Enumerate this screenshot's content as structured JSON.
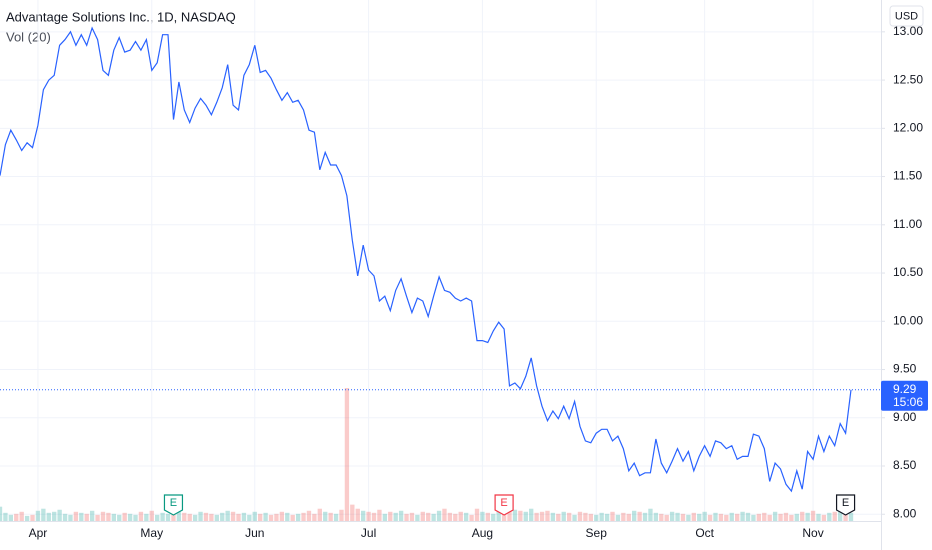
{
  "chart_data": {
    "type": "line",
    "title": "Advantage Solutions Inc., 1D, NASDAQ",
    "volume_label": "Vol (20)",
    "currency": "USD",
    "countdown": "15:06",
    "color": "#2962ff",
    "grid": true,
    "categories": [
      null,
      null,
      null,
      null,
      null,
      null,
      null,
      "Apr",
      null,
      null,
      null,
      null,
      null,
      null,
      null,
      null,
      null,
      null,
      null,
      null,
      null,
      null,
      null,
      null,
      null,
      null,
      null,
      null,
      "May",
      null,
      null,
      null,
      null,
      null,
      null,
      null,
      null,
      null,
      null,
      null,
      null,
      null,
      null,
      null,
      null,
      null,
      null,
      "Jun",
      null,
      null,
      null,
      null,
      null,
      null,
      null,
      null,
      null,
      null,
      null,
      null,
      null,
      null,
      null,
      null,
      null,
      null,
      null,
      null,
      "Jul",
      null,
      null,
      null,
      null,
      null,
      null,
      null,
      null,
      null,
      null,
      null,
      null,
      null,
      null,
      null,
      null,
      null,
      null,
      null,
      null,
      "Aug",
      null,
      null,
      null,
      null,
      null,
      null,
      null,
      null,
      null,
      null,
      null,
      null,
      null,
      null,
      null,
      null,
      null,
      null,
      null,
      null,
      "Sep",
      null,
      null,
      null,
      null,
      null,
      null,
      null,
      null,
      null,
      null,
      null,
      null,
      null,
      null,
      null,
      null,
      null,
      null,
      null,
      "Oct",
      null,
      null,
      null,
      null,
      null,
      null,
      null,
      null,
      null,
      null,
      null,
      null,
      null,
      null,
      null,
      null,
      null,
      null,
      null,
      "Nov",
      null,
      null,
      null,
      null,
      null,
      null,
      null
    ],
    "values": [
      11.51,
      11.83,
      11.98,
      11.88,
      11.77,
      11.85,
      11.8,
      12.03,
      12.4,
      12.5,
      12.55,
      12.86,
      12.92,
      13.0,
      12.86,
      12.97,
      12.86,
      13.04,
      12.92,
      12.6,
      12.55,
      12.81,
      12.94,
      12.79,
      12.81,
      12.9,
      12.81,
      12.92,
      12.6,
      12.68,
      12.97,
      12.97,
      12.09,
      12.48,
      12.19,
      12.06,
      12.21,
      12.31,
      12.24,
      12.14,
      12.27,
      12.42,
      12.66,
      12.24,
      12.19,
      12.55,
      12.66,
      12.86,
      12.58,
      12.6,
      12.52,
      12.4,
      12.29,
      12.37,
      12.27,
      12.29,
      12.19,
      11.98,
      11.96,
      11.57,
      11.75,
      11.62,
      11.62,
      11.51,
      11.3,
      10.84,
      10.47,
      10.79,
      10.53,
      10.47,
      10.21,
      10.26,
      10.11,
      10.32,
      10.44,
      10.26,
      10.09,
      10.24,
      10.21,
      10.05,
      10.26,
      10.46,
      10.32,
      10.3,
      10.24,
      10.21,
      10.24,
      10.21,
      9.8,
      9.8,
      9.78,
      9.9,
      9.99,
      9.92,
      9.33,
      9.36,
      9.3,
      9.43,
      9.62,
      9.33,
      9.12,
      8.97,
      9.07,
      8.99,
      9.12,
      8.99,
      9.17,
      8.91,
      8.76,
      8.74,
      8.84,
      8.88,
      8.88,
      8.76,
      8.81,
      8.68,
      8.45,
      8.53,
      8.4,
      8.43,
      8.43,
      8.78,
      8.53,
      8.43,
      8.55,
      8.68,
      8.55,
      8.65,
      8.45,
      8.6,
      8.71,
      8.6,
      8.76,
      8.74,
      8.68,
      8.71,
      8.57,
      8.6,
      8.6,
      8.83,
      8.81,
      8.68,
      8.34,
      8.53,
      8.47,
      8.31,
      8.24,
      8.45,
      8.26,
      8.65,
      8.57,
      8.81,
      8.65,
      8.81,
      8.71,
      8.94,
      8.84,
      9.29
    ],
    "volume": [
      14,
      8,
      6,
      7,
      9,
      5,
      6,
      10,
      12,
      8,
      9,
      11,
      7,
      6,
      9,
      8,
      7,
      10,
      6,
      9,
      8,
      7,
      6,
      8,
      7,
      6,
      9,
      7,
      10,
      6,
      8,
      7,
      14,
      9,
      8,
      7,
      6,
      9,
      8,
      7,
      6,
      8,
      10,
      9,
      7,
      8,
      6,
      9,
      7,
      8,
      6,
      7,
      9,
      8,
      6,
      7,
      8,
      10,
      7,
      12,
      9,
      8,
      7,
      11,
      130,
      16,
      12,
      10,
      9,
      8,
      11,
      7,
      9,
      8,
      10,
      7,
      8,
      6,
      9,
      8,
      7,
      10,
      12,
      8,
      7,
      9,
      8,
      6,
      12,
      9,
      8,
      7,
      10,
      9,
      14,
      11,
      10,
      9,
      12,
      8,
      9,
      10,
      8,
      7,
      9,
      8,
      6,
      9,
      8,
      7,
      6,
      8,
      7,
      9,
      6,
      8,
      7,
      10,
      9,
      8,
      12,
      8,
      7,
      6,
      9,
      8,
      7,
      6,
      8,
      7,
      9,
      6,
      8,
      7,
      6,
      8,
      7,
      9,
      8,
      6,
      7,
      8,
      6,
      9,
      7,
      8,
      6,
      7,
      9,
      8,
      10,
      7,
      6,
      8,
      9,
      10,
      7,
      8
    ],
    "earnings": [
      {
        "at": 32,
        "label": "E",
        "color": "#089981"
      },
      {
        "at": 93,
        "label": "E",
        "color": "#f23645"
      },
      {
        "at": 156,
        "label": "E",
        "color": "#131722"
      }
    ],
    "ylim": [
      7.93,
      13.33
    ],
    "yticks": [
      {
        "value": 8,
        "label": "8.00"
      },
      {
        "value": 8.5,
        "label": "8.50"
      },
      {
        "value": 9,
        "label": "9.00"
      },
      {
        "value": 9.5,
        "label": "9.50"
      },
      {
        "value": 10,
        "label": "10.00"
      },
      {
        "value": 10.5,
        "label": "10.50"
      },
      {
        "value": 11,
        "label": "11.00"
      },
      {
        "value": 11.5,
        "label": "11.50"
      },
      {
        "value": 12,
        "label": "12.00"
      },
      {
        "value": 12.5,
        "label": "12.50"
      },
      {
        "value": 13,
        "label": "13.00"
      }
    ]
  }
}
